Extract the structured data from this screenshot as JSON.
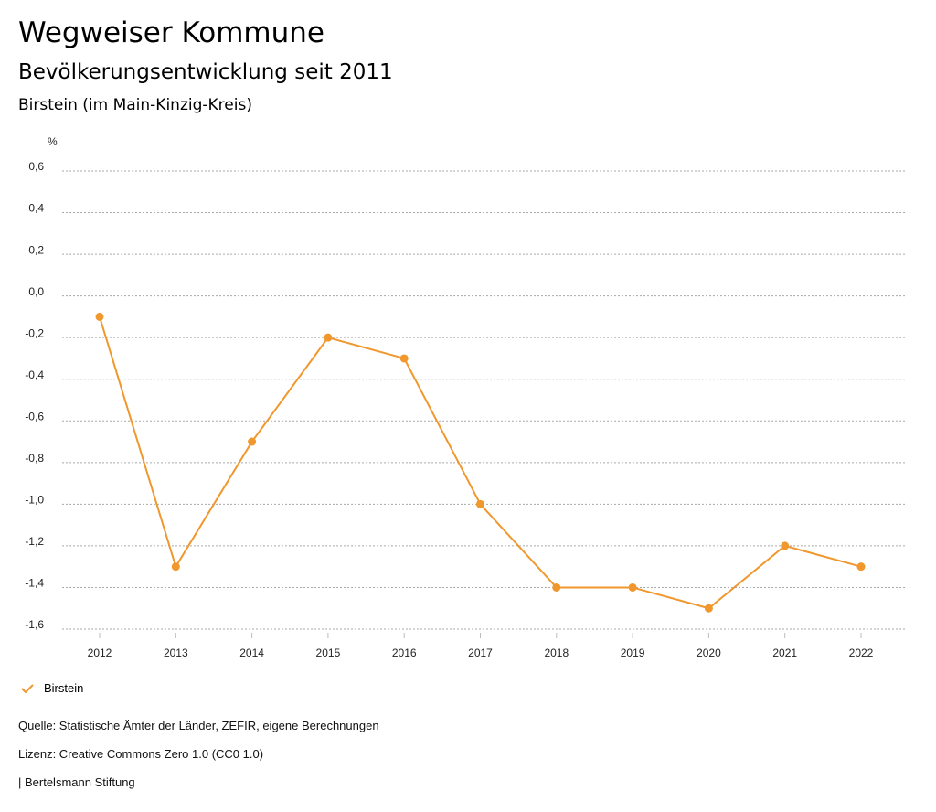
{
  "header": {
    "title": "Wegweiser Kommune",
    "subtitle": "Bevölkerungsentwicklung seit 2011",
    "region": "Birstein (im Main-Kinzig-Kreis)"
  },
  "chart_data": {
    "type": "line",
    "title": "Bevölkerungsentwicklung seit 2011",
    "ylabel": "%",
    "xlabel": "",
    "ylim": [
      -1.6,
      0.6
    ],
    "yticks": [
      "0,6",
      "0,4",
      "0,2",
      "0,0",
      "-0,2",
      "-0,4",
      "-0,6",
      "-0,8",
      "-1,0",
      "-1,2",
      "-1,4",
      "-1,6"
    ],
    "ytick_values": [
      0.6,
      0.4,
      0.2,
      0.0,
      -0.2,
      -0.4,
      -0.6,
      -0.8,
      -1.0,
      -1.2,
      -1.4,
      -1.6
    ],
    "categories": [
      "2012",
      "2013",
      "2014",
      "2015",
      "2016",
      "2017",
      "2018",
      "2019",
      "2020",
      "2021",
      "2022"
    ],
    "series": [
      {
        "name": "Birstein",
        "color": "#f0972d",
        "values": [
          -0.1,
          -1.3,
          -0.7,
          -0.2,
          -0.3,
          -1.0,
          -1.4,
          -1.4,
          -1.5,
          -1.2,
          -1.3
        ]
      }
    ],
    "grid": true,
    "legend": "bottom-left"
  },
  "legend": {
    "label": "Birstein"
  },
  "footer": {
    "source": "Quelle: Statistische Ämter der Länder, ZEFIR, eigene Berechnungen",
    "license": "Lizenz: Creative Commons Zero 1.0 (CC0 1.0)",
    "publisher": "| Bertelsmann Stiftung"
  }
}
